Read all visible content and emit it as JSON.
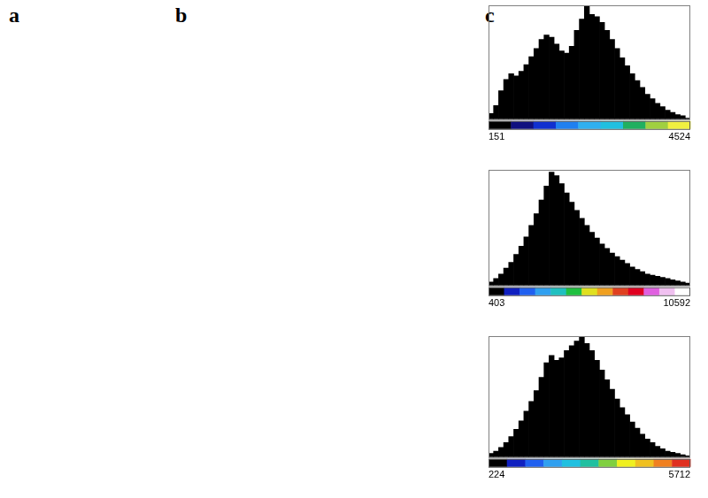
{
  "panel_labels": [
    "a",
    "b",
    "c"
  ],
  "chart_data": [
    {
      "type": "histogram",
      "bins": [
        151,
        260.3,
        369.7,
        479.0,
        588.3,
        697.6,
        807.0,
        916.3,
        1025.6,
        1134.9,
        1244.3,
        1353.6,
        1462.9,
        1572.2,
        1681.6,
        1790.9,
        1900.2,
        2009.5,
        2118.9,
        2228.2,
        2337.5,
        2446.8,
        2556.2,
        2665.5,
        2774.8,
        2884.1,
        2993.5,
        3102.8,
        3212.1,
        3321.4,
        3430.8,
        3540.1,
        3649.4,
        3758.7,
        3868.1,
        3977.4,
        4086.7,
        4196.0,
        4305.4,
        4414.7,
        4524
      ],
      "values": [
        5,
        12,
        25,
        35,
        40,
        38,
        42,
        48,
        55,
        62,
        70,
        74,
        72,
        66,
        60,
        58,
        64,
        78,
        88,
        100,
        92,
        90,
        85,
        78,
        70,
        62,
        54,
        47,
        40,
        34,
        28,
        22,
        18,
        14,
        11,
        8,
        6,
        4,
        3,
        1
      ],
      "color": "#000000",
      "xlim": [
        151,
        4524
      ],
      "xticks": [
        151,
        4524
      ],
      "ylim": [
        0,
        100
      ],
      "tick_labels": "x",
      "grid": false
    },
    {
      "type": "histogram",
      "bins": [
        403,
        657.7,
        912.5,
        1167.2,
        1421.9,
        1676.6,
        1931.4,
        2186.1,
        2440.8,
        2695.5,
        2950.3,
        3205.0,
        3459.7,
        3714.4,
        3969.2,
        4223.9,
        4478.6,
        4733.3,
        4988.1,
        5242.8,
        5497.5,
        5752.2,
        6007.0,
        6261.7,
        6516.4,
        6771.1,
        7025.9,
        7280.6,
        7535.3,
        7790.0,
        8044.8,
        8299.5,
        8554.2,
        8808.9,
        9063.7,
        9318.4,
        9573.1,
        9827.8,
        10082.6,
        10337.3,
        10592
      ],
      "values": [
        3,
        6,
        10,
        15,
        20,
        27,
        34,
        42,
        52,
        62,
        74,
        86,
        98,
        95,
        88,
        80,
        72,
        65,
        58,
        52,
        46,
        41,
        36,
        32,
        28,
        25,
        22,
        19,
        16,
        14,
        12,
        10,
        9,
        8,
        7,
        6,
        5,
        4,
        3,
        2
      ],
      "color": "#000000",
      "xlim": [
        403,
        10592
      ],
      "xticks": [
        403,
        10592
      ],
      "ylim": [
        0,
        100
      ],
      "tick_labels": "x",
      "grid": false
    },
    {
      "type": "histogram",
      "bins": [
        224,
        361.2,
        498.4,
        635.6,
        772.8,
        910,
        1047.2,
        1184.4,
        1321.6,
        1458.8,
        1596,
        1733.2,
        1870.4,
        2007.6,
        2144.8,
        2282,
        2419.2,
        2556.4,
        2693.6,
        2830.8,
        2968,
        3105.2,
        3242.4,
        3379.6,
        3516.8,
        3654,
        3791.2,
        3928.4,
        4065.6,
        4202.8,
        4340,
        4477.2,
        4614.4,
        4751.6,
        4888.8,
        5026,
        5163.2,
        5300.4,
        5437.6,
        5574.8,
        5712
      ],
      "values": [
        3,
        5,
        8,
        12,
        17,
        23,
        30,
        38,
        46,
        55,
        66,
        78,
        84,
        80,
        82,
        88,
        92,
        96,
        100,
        94,
        88,
        80,
        72,
        64,
        56,
        48,
        41,
        35,
        29,
        24,
        19,
        15,
        12,
        9,
        7,
        5,
        4,
        3,
        2,
        1
      ],
      "color": "#000000",
      "xlim": [
        224,
        5712
      ],
      "xticks": [
        224,
        5712
      ],
      "ylim": [
        0,
        100
      ],
      "tick_labels": "x",
      "grid": false
    }
  ]
}
